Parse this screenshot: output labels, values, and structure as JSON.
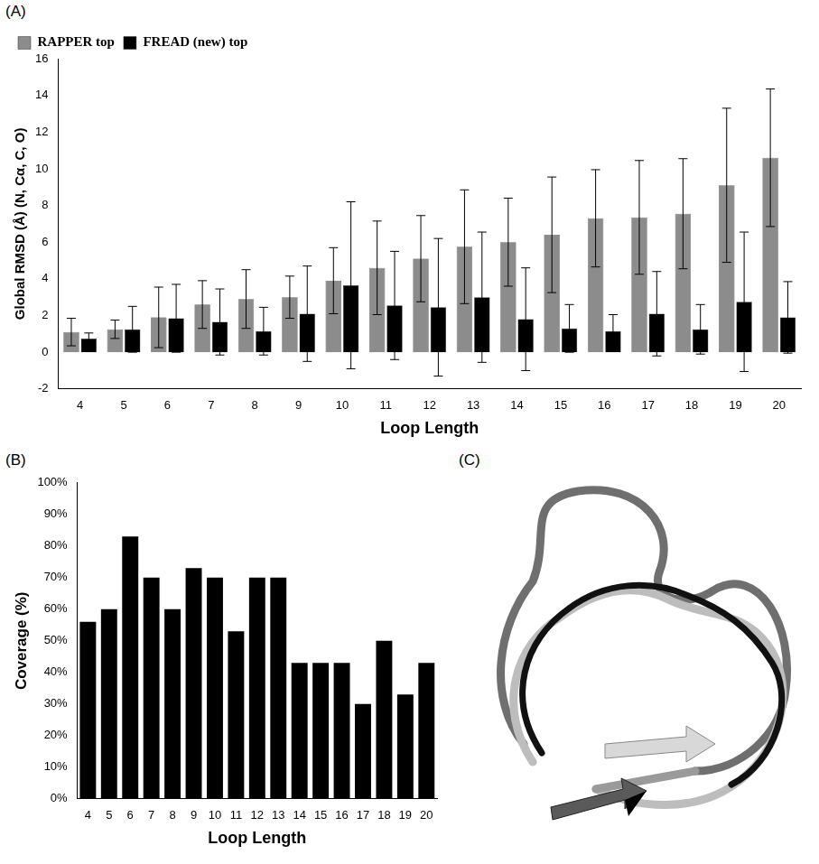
{
  "chart_data": [
    {
      "type": "bar",
      "panel_label": "(A)",
      "x_label": "Loop Length",
      "y_label": "Global RMSD (Å) (N, Cα, C, O)",
      "categories": [
        4,
        5,
        6,
        7,
        8,
        9,
        10,
        11,
        12,
        13,
        14,
        15,
        16,
        17,
        18,
        19,
        20
      ],
      "series": [
        {
          "name": "RAPPER top",
          "color": "#8c8c8c",
          "values": [
            1.1,
            1.25,
            1.9,
            2.6,
            2.9,
            3.0,
            3.9,
            4.6,
            5.1,
            5.75,
            6.0,
            6.4,
            7.3,
            7.35,
            7.55,
            9.1,
            10.6
          ],
          "errors": [
            0.75,
            0.5,
            1.65,
            1.3,
            1.6,
            1.15,
            1.8,
            2.55,
            2.35,
            3.1,
            2.4,
            3.15,
            2.65,
            3.1,
            3.0,
            4.2,
            3.75
          ]
        },
        {
          "name": "FREAD (new) top",
          "color": "#000000",
          "values": [
            0.75,
            1.25,
            1.85,
            1.65,
            1.15,
            2.1,
            3.65,
            2.55,
            2.45,
            3.0,
            1.8,
            1.3,
            1.15,
            2.1,
            1.25,
            2.75,
            1.9
          ],
          "errors": [
            0.3,
            1.25,
            1.85,
            1.8,
            1.3,
            2.6,
            4.55,
            2.95,
            3.75,
            3.55,
            2.8,
            1.3,
            0.9,
            2.3,
            1.35,
            3.8,
            1.95
          ]
        }
      ],
      "ylim": [
        -2,
        16
      ],
      "yticks": [
        -2,
        0,
        2,
        4,
        6,
        8,
        10,
        12,
        14,
        16
      ],
      "grid": false,
      "legend": "top-left"
    },
    {
      "type": "bar",
      "panel_label": "(B)",
      "x_label": "Loop Length",
      "y_label": "Coverage (%)",
      "categories": [
        4,
        5,
        6,
        7,
        8,
        9,
        10,
        11,
        12,
        13,
        14,
        15,
        16,
        17,
        18,
        19,
        20
      ],
      "values": [
        56,
        60,
        83,
        70,
        60,
        73,
        70,
        53,
        70,
        70,
        43,
        43,
        43,
        30,
        50,
        33,
        43
      ],
      "color": "#000000",
      "ylim": [
        0,
        100
      ],
      "yticks": [
        {
          "value": 0,
          "label": "0%"
        },
        {
          "value": 10,
          "label": "10%"
        },
        {
          "value": 20,
          "label": "20%"
        },
        {
          "value": 30,
          "label": "30%"
        },
        {
          "value": 40,
          "label": "40%"
        },
        {
          "value": 50,
          "label": "50%"
        },
        {
          "value": 60,
          "label": "60%"
        },
        {
          "value": 70,
          "label": "70%"
        },
        {
          "value": 80,
          "label": "80%"
        },
        {
          "value": 90,
          "label": "90%"
        },
        {
          "value": 100,
          "label": "100%"
        }
      ],
      "grid": false
    }
  ],
  "image_panel": {
    "panel_label": "(C)"
  }
}
